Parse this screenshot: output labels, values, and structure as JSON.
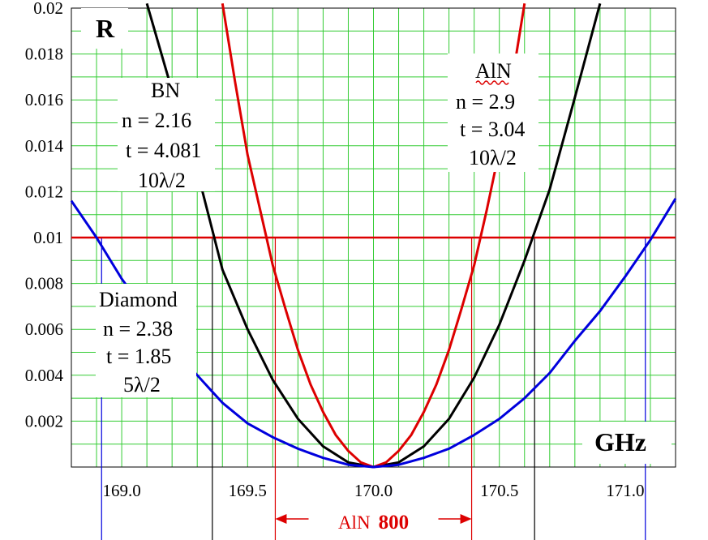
{
  "chart_data": {
    "type": "line",
    "title": "",
    "ylabel": "R",
    "xlabel": "GHz",
    "xlim": [
      168.8,
      171.2
    ],
    "ylim": [
      0,
      0.02
    ],
    "xticks": [
      169.0,
      169.5,
      170.0,
      170.5,
      171.0
    ],
    "xtick_labels": [
      "169.0",
      "169.5",
      "170.0",
      "170.5",
      "171.0"
    ],
    "yticks": [
      0.002,
      0.004,
      0.006,
      0.008,
      0.01,
      0.012,
      0.014,
      0.016,
      0.018,
      0.02
    ],
    "ytick_labels": [
      "0.002",
      "0.004",
      "0.006",
      "0.008",
      "0.01",
      "0.012",
      "0.014",
      "0.016",
      "0.018",
      "0.02"
    ],
    "grid": true,
    "grid_color": "#33cc33",
    "threshold": {
      "y": 0.01,
      "color": "#dd0000"
    },
    "series": [
      {
        "name": "BN",
        "color": "#000000",
        "labels": [
          "BN",
          "n = 2.16",
          "t = 4.081",
          "10λ/2"
        ],
        "x": [
          169.1,
          169.2,
          169.3,
          169.4,
          169.5,
          169.6,
          169.7,
          169.8,
          169.9,
          170.0,
          170.1,
          170.2,
          170.3,
          170.4,
          170.5,
          170.6,
          170.7,
          170.8,
          170.9
        ],
        "y": [
          0.0202,
          0.0164,
          0.0129,
          0.0086,
          0.006,
          0.0038,
          0.0021,
          0.0009,
          0.0002,
          0.0,
          0.0002,
          0.0009,
          0.0021,
          0.0039,
          0.0062,
          0.009,
          0.0121,
          0.0161,
          0.0202
        ]
      },
      {
        "name": "AlN",
        "color": "#dd0000",
        "labels": [
          "AlN",
          "n = 2.9",
          "t = 3.04",
          "10λ/2"
        ],
        "x": [
          169.4,
          169.45,
          169.5,
          169.55,
          169.6,
          169.65,
          169.7,
          169.75,
          169.8,
          169.85,
          169.9,
          169.95,
          170.0,
          170.05,
          170.1,
          170.15,
          170.2,
          170.25,
          170.3,
          170.35,
          170.4,
          170.45,
          170.5,
          170.55,
          170.6
        ],
        "y": [
          0.0202,
          0.0168,
          0.0136,
          0.0112,
          0.0088,
          0.0069,
          0.0051,
          0.0036,
          0.0024,
          0.0014,
          0.0007,
          0.0002,
          0.0,
          0.0002,
          0.0007,
          0.0014,
          0.0024,
          0.0036,
          0.0051,
          0.0069,
          0.0088,
          0.0112,
          0.0138,
          0.0168,
          0.0202
        ]
      },
      {
        "name": "Diamond",
        "color": "#0000dd",
        "labels": [
          "Diamond",
          "n = 2.38",
          "t = 1.85",
          "5λ/2"
        ],
        "x": [
          168.8,
          168.9,
          169.0,
          169.1,
          169.2,
          169.3,
          169.4,
          169.5,
          169.6,
          169.7,
          169.8,
          169.9,
          170.0,
          170.1,
          170.2,
          170.3,
          170.4,
          170.5,
          170.6,
          170.7,
          170.8,
          170.9,
          171.0,
          171.1,
          171.2
        ],
        "y": [
          0.0116,
          0.01,
          0.0082,
          0.0067,
          0.0052,
          0.004,
          0.0028,
          0.0019,
          0.0013,
          0.0008,
          0.0004,
          0.0001,
          0.0,
          0.0001,
          0.0004,
          0.0008,
          0.0014,
          0.0021,
          0.003,
          0.0041,
          0.0055,
          0.0068,
          0.0083,
          0.0099,
          0.0117
        ]
      }
    ],
    "vlines": [
      {
        "x": 168.92,
        "color": "#0000dd"
      },
      {
        "x": 169.36,
        "color": "#000000"
      },
      {
        "x": 169.61,
        "color": "#dd0000"
      },
      {
        "x": 170.39,
        "color": "#dd0000"
      },
      {
        "x": 170.64,
        "color": "#000000"
      },
      {
        "x": 171.08,
        "color": "#0000dd"
      }
    ],
    "bandwidth_annotation": {
      "label": "AlN",
      "value": "800",
      "x_from": 169.61,
      "x_to": 170.39,
      "color": "#dd0000"
    }
  }
}
